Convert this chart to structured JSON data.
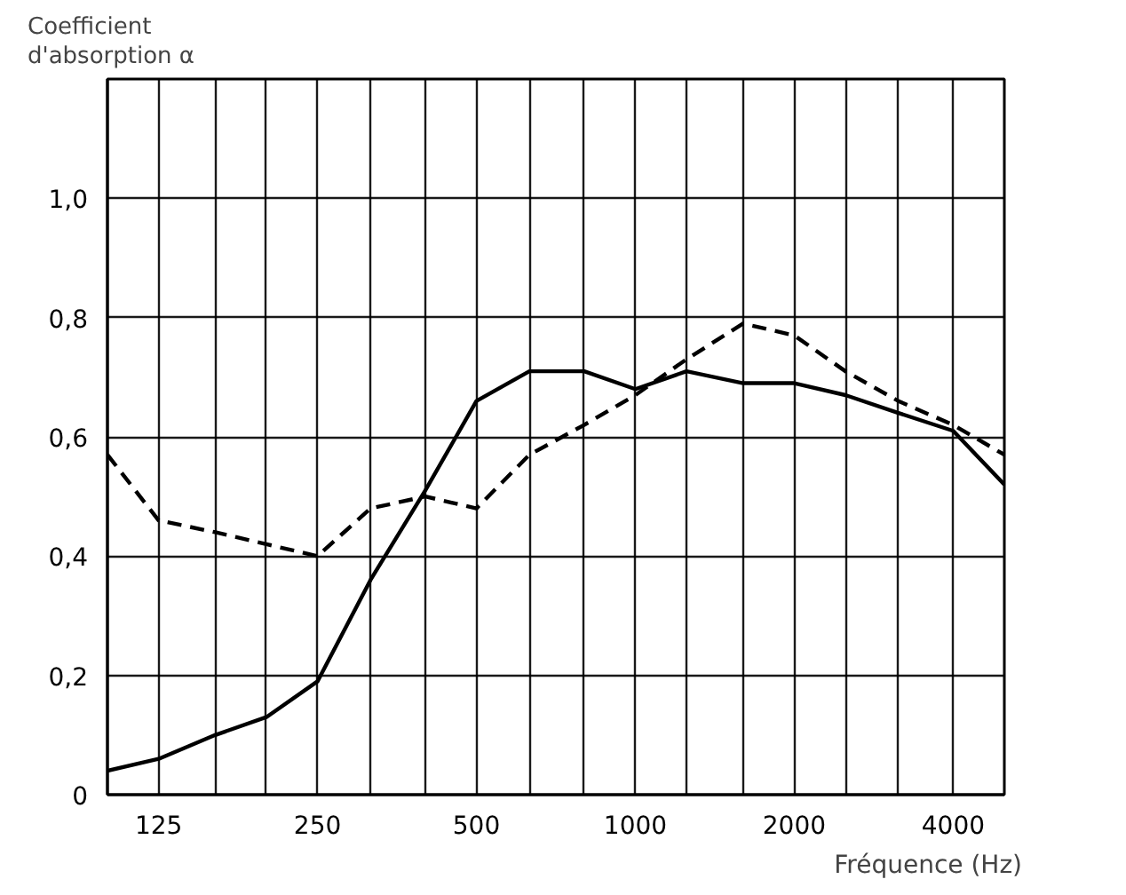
{
  "chart_data": {
    "type": "line",
    "ylabel": "Coefficient\nd'absorption α",
    "xlabel": "Fréquence (Hz)",
    "log": "x",
    "grid": true,
    "marker": "none",
    "x": [
      100,
      125,
      160,
      200,
      250,
      315,
      400,
      500,
      630,
      800,
      1000,
      1250,
      1600,
      2000,
      2500,
      3150,
      4000,
      5000
    ],
    "xlim": [
      100,
      5000
    ],
    "xticks": [
      125,
      {
        "value": 160,
        "label": null
      },
      {
        "value": 200,
        "label": null
      },
      250,
      {
        "value": 315,
        "label": null
      },
      {
        "value": 400,
        "label": null
      },
      500,
      {
        "value": 630,
        "label": null
      },
      {
        "value": 800,
        "label": null
      },
      1000,
      {
        "value": 1250,
        "label": null
      },
      {
        "value": 1600,
        "label": null
      },
      2000,
      {
        "value": 2500,
        "label": null
      },
      {
        "value": 3150,
        "label": null
      },
      4000
    ],
    "ylim": [
      0,
      1.2
    ],
    "yticks": [
      0,
      {
        "value": 0.2,
        "label": "0,2"
      },
      {
        "value": 0.4,
        "label": "0,4"
      },
      {
        "value": 0.6,
        "label": "0,6"
      },
      {
        "value": 0.8,
        "label": "0,8"
      },
      {
        "value": 1.0,
        "label": "1,0"
      }
    ],
    "series": [
      {
        "color": "#000000",
        "line_style": "solid",
        "values": [
          0.04,
          0.06,
          0.1,
          0.13,
          0.19,
          0.36,
          0.51,
          0.66,
          0.71,
          0.71,
          0.68,
          0.71,
          0.69,
          0.69,
          0.67,
          0.64,
          0.61,
          0.52
        ]
      },
      {
        "color": "#000000",
        "line_style": "dashed",
        "values": [
          0.57,
          0.46,
          0.44,
          0.42,
          0.4,
          0.48,
          0.5,
          0.48,
          0.57,
          0.62,
          0.67,
          0.73,
          0.79,
          0.77,
          0.71,
          0.66,
          0.62,
          0.57
        ]
      }
    ]
  }
}
